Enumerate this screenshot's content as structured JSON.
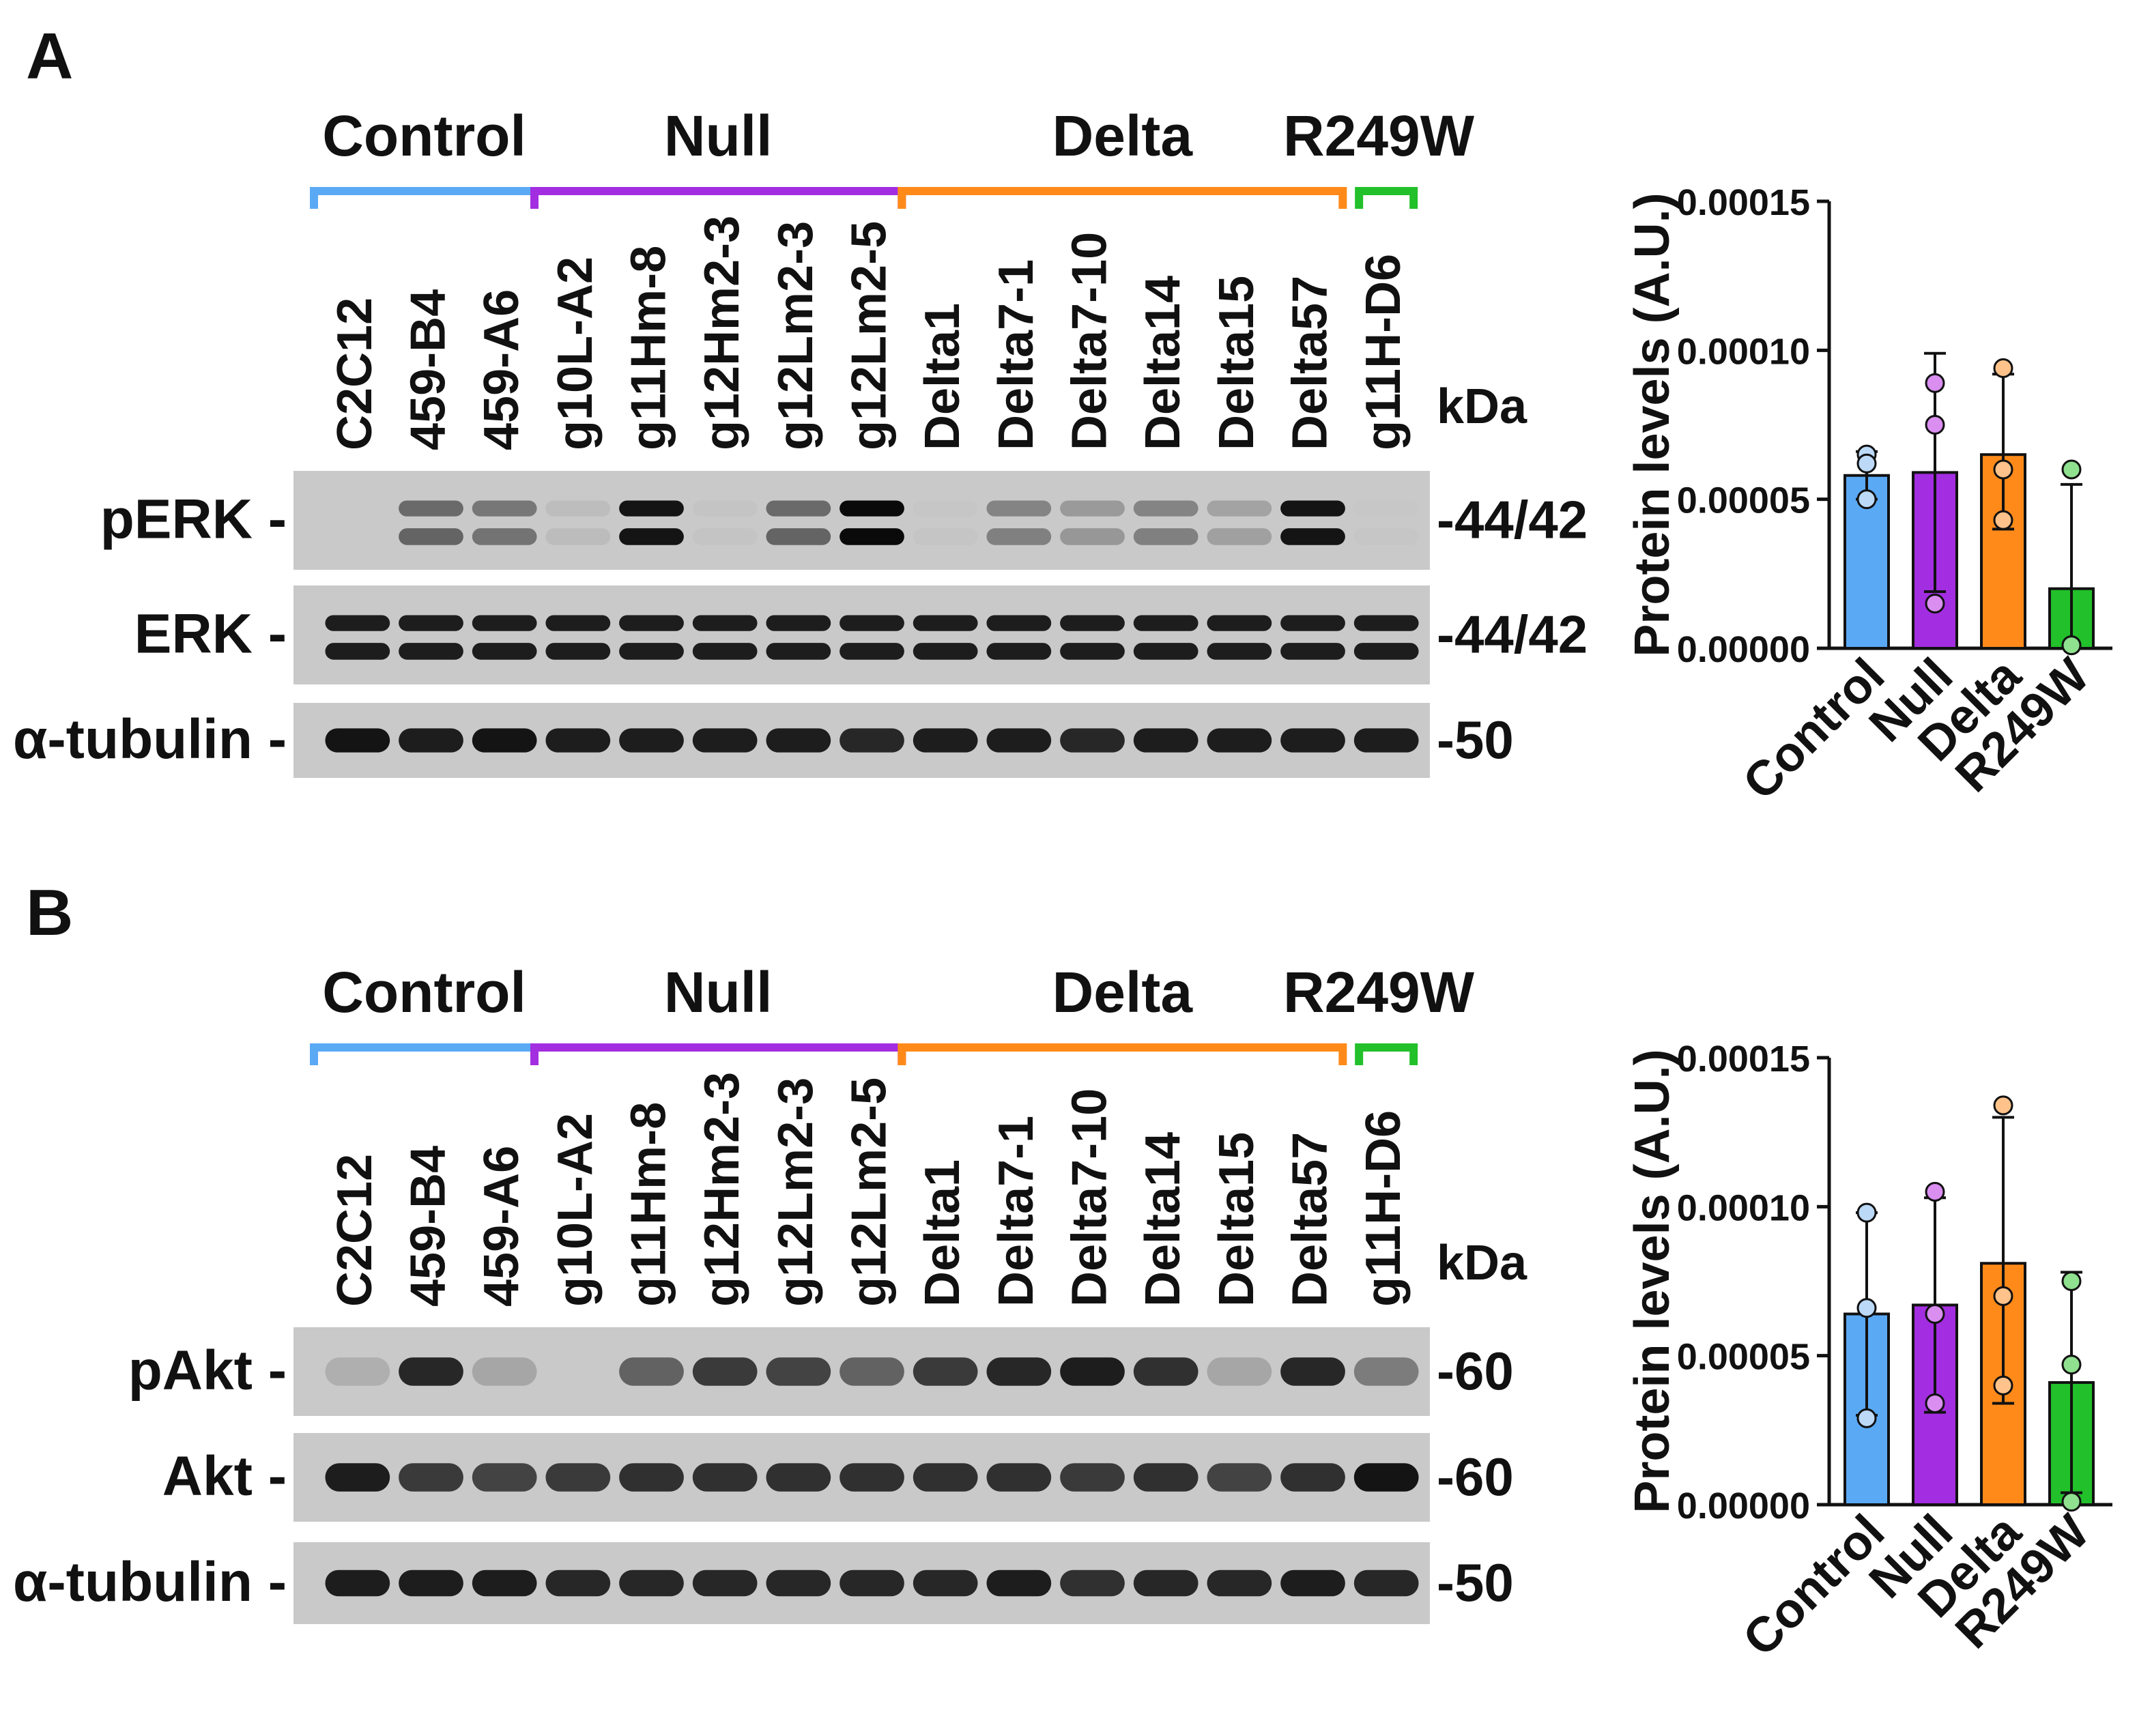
{
  "panels": [
    {
      "letter": "A",
      "groups": [
        {
          "label": "Control",
          "color": "#5aa9f5"
        },
        {
          "label": "Null",
          "color": "#a32de0"
        },
        {
          "label": "Delta",
          "color": "#ff8a1a"
        },
        {
          "label": "R249W",
          "color": "#22c02a"
        }
      ],
      "lanes": [
        "C2C12",
        "459-B4",
        "459-A6",
        "g10L-A2",
        "g11Hm-8",
        "g12Hm2-3",
        "g12Lm2-3",
        "g12Lm2-5",
        "Delta1",
        "Delta7-1",
        "Delta7-10",
        "Delta14",
        "Delta15",
        "Delta57",
        "g11H-D6"
      ],
      "kda_label": "kDa",
      "blots": [
        {
          "label": "pERK -",
          "kda": "-44/42",
          "intensity": [
            0.0,
            0.55,
            0.5,
            0.12,
            0.95,
            0.06,
            0.55,
            1.0,
            0.04,
            0.45,
            0.35,
            0.45,
            0.3,
            0.95,
            0.02
          ],
          "doublet": true
        },
        {
          "label": "ERK -",
          "kda": "-44/42",
          "intensity": [
            0.9,
            0.9,
            0.9,
            0.9,
            0.9,
            0.9,
            0.9,
            0.9,
            0.9,
            0.9,
            0.9,
            0.9,
            0.9,
            0.9,
            0.9
          ],
          "doublet": true
        },
        {
          "label": "α-tubulin -",
          "kda": "-50",
          "intensity": [
            0.95,
            0.9,
            0.95,
            0.9,
            0.9,
            0.9,
            0.9,
            0.85,
            0.9,
            0.9,
            0.85,
            0.9,
            0.9,
            0.9,
            0.9
          ],
          "doublet": false
        }
      ]
    },
    {
      "letter": "B",
      "groups": [
        {
          "label": "Control",
          "color": "#5aa9f5"
        },
        {
          "label": "Null",
          "color": "#a32de0"
        },
        {
          "label": "Delta",
          "color": "#ff8a1a"
        },
        {
          "label": "R249W",
          "color": "#22c02a"
        }
      ],
      "lanes": [
        "C2C12",
        "459-B4",
        "459-A6",
        "g10L-A2",
        "g11Hm-8",
        "g12Hm2-3",
        "g12Lm2-3",
        "g12Lm2-5",
        "Delta1",
        "Delta7-1",
        "Delta7-10",
        "Delta14",
        "Delta15",
        "Delta57",
        "g11H-D6"
      ],
      "kda_label": "kDa",
      "blots": [
        {
          "label": "pAkt -",
          "kda": "-60",
          "intensity": [
            0.25,
            0.85,
            0.3,
            0.0,
            0.6,
            0.75,
            0.7,
            0.6,
            0.75,
            0.85,
            0.9,
            0.8,
            0.3,
            0.85,
            0.5
          ],
          "doublet": false
        },
        {
          "label": "Akt -",
          "kda": "-60",
          "intensity": [
            0.9,
            0.75,
            0.7,
            0.75,
            0.8,
            0.8,
            0.8,
            0.8,
            0.8,
            0.8,
            0.75,
            0.8,
            0.7,
            0.8,
            0.95
          ],
          "doublet": false
        },
        {
          "label": "α-tubulin -",
          "kda": "-50",
          "intensity": [
            0.9,
            0.9,
            0.9,
            0.85,
            0.85,
            0.85,
            0.85,
            0.85,
            0.85,
            0.9,
            0.8,
            0.85,
            0.85,
            0.9,
            0.85
          ],
          "doublet": false
        }
      ]
    }
  ],
  "chart_data": [
    {
      "type": "bar",
      "panel": "A",
      "categories": [
        "Control",
        "Null",
        "Delta",
        "R249W"
      ],
      "values": [
        5.8e-05,
        5.9e-05,
        6.5e-05,
        2e-05
      ],
      "error_upper": [
        6.6e-05,
        9.9e-05,
        9.2e-05,
        5.5e-05
      ],
      "error_lower": [
        5e-05,
        1.9e-05,
        4e-05,
        0.0
      ],
      "points": [
        [
          6.5e-05,
          6.2e-05,
          5e-05
        ],
        [
          8.9e-05,
          7.5e-05,
          1.5e-05
        ],
        [
          9.4e-05,
          6e-05,
          4.3e-05
        ],
        [
          6e-05,
          1e-06,
          1e-06
        ]
      ],
      "colors": [
        "#5aa9f5",
        "#a32de0",
        "#ff8a1a",
        "#22c02a"
      ],
      "point_colors": [
        "#bcd9f7",
        "#d98ef0",
        "#ffc28a",
        "#8fe08f"
      ],
      "ylabel": "Protein levels (A.U.)",
      "yticks": [
        "0.00000",
        "0.00005",
        "0.00010",
        "0.00015"
      ],
      "ylim": [
        0,
        0.00015
      ]
    },
    {
      "type": "bar",
      "panel": "B",
      "categories": [
        "Control",
        "Null",
        "Delta",
        "R249W"
      ],
      "values": [
        6.4e-05,
        6.7e-05,
        8.1e-05,
        4.1e-05
      ],
      "error_upper": [
        9.8e-05,
        0.000103,
        0.00013,
        7.8e-05
      ],
      "error_lower": [
        3e-05,
        3.1e-05,
        3.4e-05,
        4e-06
      ],
      "points": [
        [
          9.8e-05,
          6.6e-05,
          2.9e-05
        ],
        [
          0.000105,
          6.4e-05,
          3.4e-05
        ],
        [
          0.000134,
          7e-05,
          4e-05
        ],
        [
          7.5e-05,
          4.7e-05,
          1e-06
        ]
      ],
      "colors": [
        "#5aa9f5",
        "#a32de0",
        "#ff8a1a",
        "#22c02a"
      ],
      "point_colors": [
        "#bcd9f7",
        "#d98ef0",
        "#ffc28a",
        "#8fe08f"
      ],
      "ylabel": "Protein levels (A.U.)",
      "yticks": [
        "0.00000",
        "0.00005",
        "0.00010",
        "0.00015"
      ],
      "ylim": [
        0,
        0.00015
      ]
    }
  ]
}
